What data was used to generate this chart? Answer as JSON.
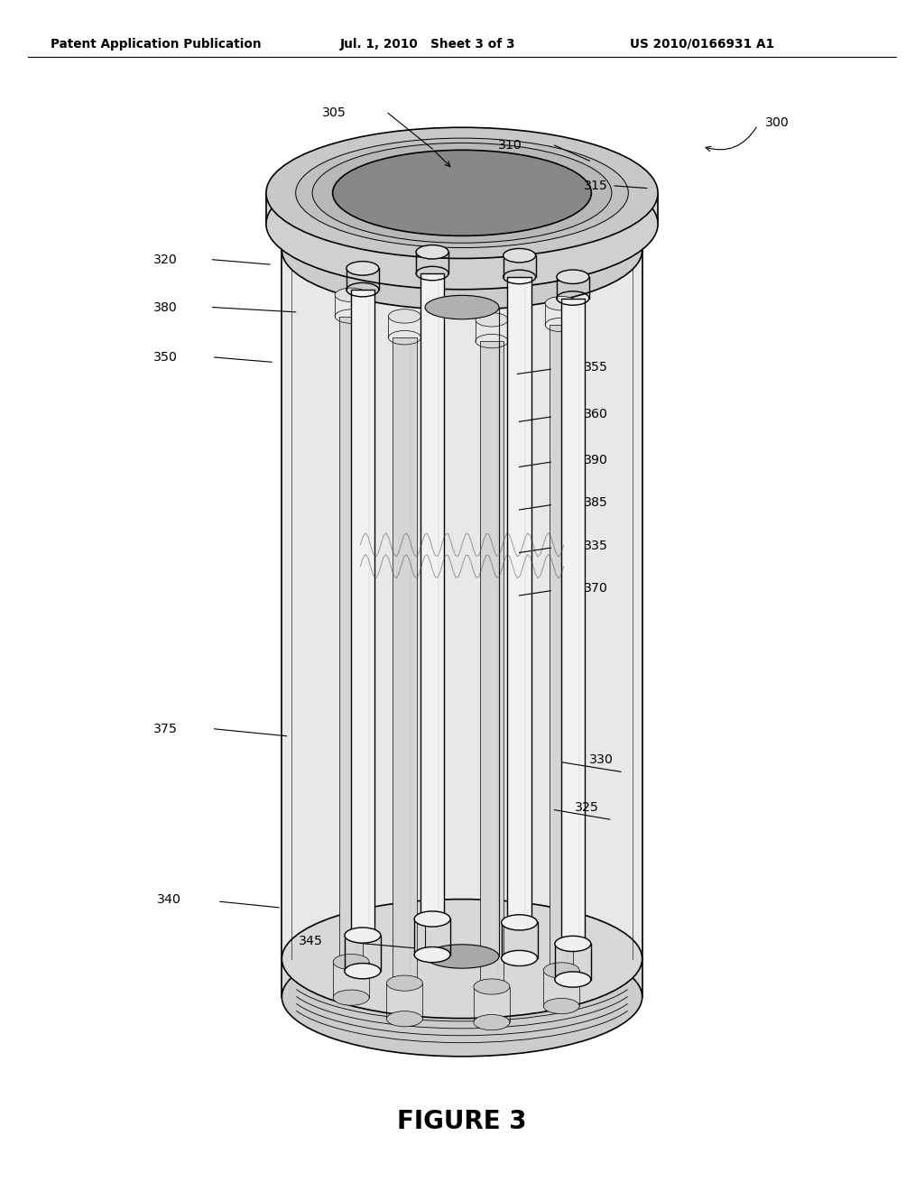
{
  "title": "FIGURE 3",
  "header_left": "Patent Application Publication",
  "header_mid": "Jul. 1, 2010   Sheet 3 of 3",
  "header_right": "US 2010/0166931 A1",
  "bg_color": "#ffffff",
  "lc": "#000000"
}
